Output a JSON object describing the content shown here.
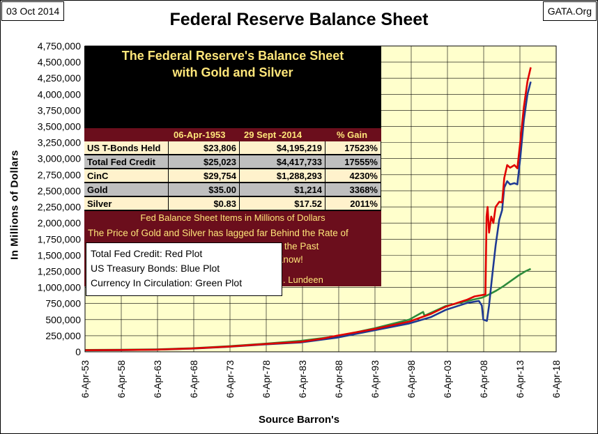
{
  "header": {
    "date": "03 Oct 2014",
    "title": "Federal Reserve Balance Sheet",
    "source": "GATA.Org"
  },
  "panel": {
    "title_line1": "The Federal Reserve's Balance Sheet",
    "title_line2": "with Gold and Silver",
    "columns": [
      "",
      "06-Apr-1953",
      "29 Sept -2014",
      "% Gain"
    ],
    "rows": [
      {
        "label": "US T-Bonds Held",
        "v1953": "$23,806",
        "v2014": "$4,195,219",
        "gain": "17523%"
      },
      {
        "label": "Total Fed Credit",
        "v1953": "$25,023",
        "v2014": "$4,417,733",
        "gain": "17555%"
      },
      {
        "label": "CinC",
        "v1953": "$29,754",
        "v2014": "$1,288,293",
        "gain": "4230%"
      },
      {
        "label": "Gold",
        "v1953": "$35.00",
        "v2014": "$1,214",
        "gain": "3368%"
      },
      {
        "label": "Silver",
        "v1953": "$0.83",
        "v2014": "$17.52",
        "gain": "2011%"
      }
    ],
    "subtitle": "Fed Balance Sheet Items in Millions of Dollars",
    "text_line1": "The Price of Gold and Silver has lagged far Behind the Rate of",
    "text_line2": "Dollar Production by The Federal Reserves for the Past",
    "text_line3": "Six Decades.  This is all an Investor Needs to Know!",
    "credit": "Source Barron's    Graphic by Mark J. Lundeen",
    "colors": {
      "dark": "#000000",
      "maroon": "#6b0e1c",
      "gold_text": "#ffe67a",
      "row_light": "#fff2cc",
      "row_gray": "#bfbfbf"
    }
  },
  "legend": {
    "line1": "Total Fed Credit:  Red Plot",
    "line2": "US Treasury Bonds: Blue Plot",
    "line3": "Currency In Circulation: Green Plot"
  },
  "chart_data": {
    "type": "line",
    "xlabel": "Source Barron's",
    "ylabel": "In  Millions  of  Dollars",
    "x_ticks": [
      "6-Apr-53",
      "6-Apr-58",
      "6-Apr-63",
      "6-Apr-68",
      "6-Apr-73",
      "6-Apr-78",
      "6-Apr-83",
      "6-Apr-88",
      "6-Apr-93",
      "6-Apr-98",
      "6-Apr-03",
      "6-Apr-08",
      "6-Apr-13",
      "6-Apr-18"
    ],
    "y_ticks": [
      "0",
      "250,000",
      "500,000",
      "750,000",
      "1,000,000",
      "1,250,000",
      "1,500,000",
      "1,750,000",
      "2,000,000",
      "2,250,000",
      "2,500,000",
      "2,750,000",
      "3,000,000",
      "3,250,000",
      "3,500,000",
      "3,750,000",
      "4,000,000",
      "4,250,000",
      "4,500,000",
      "4,750,000"
    ],
    "xlim": [
      1953.26,
      2018.26
    ],
    "ylim": [
      0,
      4750000
    ],
    "plot_background": "#ffffcc",
    "grid": true,
    "series": [
      {
        "legend": "Total Fed Credit",
        "color": "#e00000",
        "points": [
          [
            1953.3,
            25023
          ],
          [
            1958,
            28000
          ],
          [
            1963,
            34000
          ],
          [
            1968,
            52000
          ],
          [
            1973,
            80000
          ],
          [
            1978,
            120000
          ],
          [
            1983,
            155000
          ],
          [
            1986,
            205000
          ],
          [
            1988,
            250000
          ],
          [
            1993,
            350000
          ],
          [
            1998,
            470000
          ],
          [
            2001,
            590000
          ],
          [
            2003,
            700000
          ],
          [
            2006,
            810000
          ],
          [
            2007,
            860000
          ],
          [
            2008.5,
            890000
          ],
          [
            2008.65,
            2100000
          ],
          [
            2008.8,
            2250000
          ],
          [
            2009.0,
            1850000
          ],
          [
            2009.3,
            2100000
          ],
          [
            2009.6,
            2000000
          ],
          [
            2009.9,
            2250000
          ],
          [
            2010.4,
            2330000
          ],
          [
            2010.8,
            2320000
          ],
          [
            2011.1,
            2700000
          ],
          [
            2011.5,
            2900000
          ],
          [
            2011.9,
            2860000
          ],
          [
            2012.5,
            2900000
          ],
          [
            2012.9,
            2850000
          ],
          [
            2013.3,
            3250000
          ],
          [
            2013.8,
            3800000
          ],
          [
            2014.3,
            4200000
          ],
          [
            2014.75,
            4417733
          ]
        ]
      },
      {
        "legend": "US Treasury Bonds",
        "color": "#1f3a93",
        "points": [
          [
            1953.3,
            23806
          ],
          [
            1958,
            26000
          ],
          [
            1963,
            32000
          ],
          [
            1968,
            50000
          ],
          [
            1973,
            78000
          ],
          [
            1978,
            115000
          ],
          [
            1983,
            145000
          ],
          [
            1988,
            220000
          ],
          [
            1993,
            330000
          ],
          [
            1998,
            440000
          ],
          [
            2001,
            540000
          ],
          [
            2003,
            650000
          ],
          [
            2006,
            760000
          ],
          [
            2007.6,
            790000
          ],
          [
            2008.0,
            720000
          ],
          [
            2008.2,
            500000
          ],
          [
            2008.7,
            480000
          ],
          [
            2009.0,
            720000
          ],
          [
            2009.4,
            1150000
          ],
          [
            2009.9,
            1650000
          ],
          [
            2010.4,
            2050000
          ],
          [
            2010.8,
            2200000
          ],
          [
            2011.1,
            2550000
          ],
          [
            2011.5,
            2650000
          ],
          [
            2011.9,
            2600000
          ],
          [
            2012.5,
            2620000
          ],
          [
            2012.9,
            2600000
          ],
          [
            2013.3,
            3000000
          ],
          [
            2013.8,
            3600000
          ],
          [
            2014.3,
            4000000
          ],
          [
            2014.75,
            4195219
          ]
        ]
      },
      {
        "legend": "Currency In Circulation",
        "color": "#2e8b3c",
        "points": [
          [
            1953.3,
            29754
          ],
          [
            1958,
            32000
          ],
          [
            1963,
            38000
          ],
          [
            1968,
            55000
          ],
          [
            1973,
            85000
          ],
          [
            1978,
            125000
          ],
          [
            1983,
            170000
          ],
          [
            1988,
            240000
          ],
          [
            1993,
            360000
          ],
          [
            1998,
            500000
          ],
          [
            1999.9,
            620000
          ],
          [
            2000.1,
            560000
          ],
          [
            2003,
            710000
          ],
          [
            2006,
            790000
          ],
          [
            2008,
            840000
          ],
          [
            2009,
            890000
          ],
          [
            2010,
            950000
          ],
          [
            2011,
            1020000
          ],
          [
            2012,
            1100000
          ],
          [
            2013,
            1180000
          ],
          [
            2014,
            1250000
          ],
          [
            2014.75,
            1288293
          ]
        ]
      }
    ]
  }
}
